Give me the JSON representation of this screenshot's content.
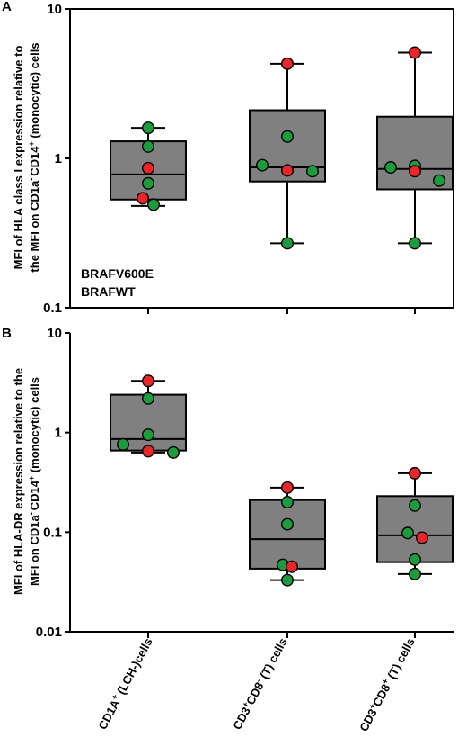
{
  "colors": {
    "braf_v600e": "#e8262b",
    "braf_wt": "#1e9b3c",
    "box_fill": "#808080",
    "legend_v600e_text": "#a01c1c",
    "legend_wt_text": "#1e7a2e"
  },
  "categories": [
    {
      "main": "CD1A",
      "sup": "+",
      "rest": " (LCH-)cells"
    },
    {
      "main": "CD3",
      "sup": "+",
      "mid": "CD8",
      "sup2": "-",
      "rest": " (T) cells"
    },
    {
      "main": "CD3",
      "sup": "+",
      "mid": "CD8",
      "sup2": "+",
      "rest": " (T) cells"
    }
  ],
  "legend": {
    "v600e": "BRAFV600E",
    "wt": "BRAFWT"
  },
  "chart_data": [
    {
      "type": "box",
      "panel": "A",
      "ylabel_line1": "MFI of HLA class I expression relative to",
      "ylabel_line2": "the MFI on CD1a",
      "ylabel_line2_sup1": "-",
      "ylabel_line2_mid": "CD14",
      "ylabel_line2_sup2": "+",
      "ylabel_line2_end": " (monocytic) cells",
      "yscale": "log",
      "ylim": [
        0.1,
        10
      ],
      "yticks": [
        "0.1",
        "1",
        "10"
      ],
      "boxes": [
        {
          "min": 0.48,
          "q1": 0.53,
          "median": 0.78,
          "q3": 1.3,
          "max": 1.6
        },
        {
          "min": 0.27,
          "q1": 0.7,
          "median": 0.87,
          "q3": 2.1,
          "max": 4.3
        },
        {
          "min": 0.27,
          "q1": 0.62,
          "median": 0.85,
          "q3": 1.9,
          "max": 5.1
        }
      ],
      "points": [
        {
          "cat": 0,
          "y": 1.6,
          "dx": 0,
          "group": "wt"
        },
        {
          "cat": 0,
          "y": 1.2,
          "dx": 0,
          "group": "wt"
        },
        {
          "cat": 0,
          "y": 0.86,
          "dx": 0,
          "group": "v600e"
        },
        {
          "cat": 0,
          "y": 0.68,
          "dx": 0,
          "group": "wt"
        },
        {
          "cat": 0,
          "y": 0.54,
          "dx": -6,
          "group": "v600e"
        },
        {
          "cat": 0,
          "y": 0.49,
          "dx": 6,
          "group": "wt"
        },
        {
          "cat": 1,
          "y": 4.3,
          "dx": 0,
          "group": "v600e"
        },
        {
          "cat": 1,
          "y": 1.4,
          "dx": 0,
          "group": "wt"
        },
        {
          "cat": 1,
          "y": 0.9,
          "dx": -28,
          "group": "wt"
        },
        {
          "cat": 1,
          "y": 0.83,
          "dx": 0,
          "group": "v600e"
        },
        {
          "cat": 1,
          "y": 0.82,
          "dx": 28,
          "group": "wt"
        },
        {
          "cat": 1,
          "y": 0.27,
          "dx": 0,
          "group": "wt"
        },
        {
          "cat": 2,
          "y": 5.1,
          "dx": 0,
          "group": "v600e"
        },
        {
          "cat": 2,
          "y": 0.89,
          "dx": 0,
          "group": "wt"
        },
        {
          "cat": 2,
          "y": 0.87,
          "dx": -27,
          "group": "wt"
        },
        {
          "cat": 2,
          "y": 0.82,
          "dx": 0,
          "group": "v600e"
        },
        {
          "cat": 2,
          "y": 0.71,
          "dx": 27,
          "group": "wt"
        },
        {
          "cat": 2,
          "y": 0.27,
          "dx": 0,
          "group": "wt"
        }
      ]
    },
    {
      "type": "box",
      "panel": "B",
      "ylabel_line1": "MFI of HLA-DR expression relative to the",
      "ylabel_line2": "MFI on CD1a",
      "ylabel_line2_sup1": "-",
      "ylabel_line2_mid": "CD14",
      "ylabel_line2_sup2": "+",
      "ylabel_line2_end": " (monocytic) cells",
      "yscale": "log",
      "ylim": [
        0.01,
        10
      ],
      "yticks": [
        "0.01",
        "0.1",
        "1",
        "10"
      ],
      "boxes": [
        {
          "min": 0.63,
          "q1": 0.66,
          "median": 0.86,
          "q3": 2.4,
          "max": 3.3
        },
        {
          "min": 0.033,
          "q1": 0.043,
          "median": 0.085,
          "q3": 0.21,
          "max": 0.28
        },
        {
          "min": 0.038,
          "q1": 0.05,
          "median": 0.093,
          "q3": 0.23,
          "max": 0.39
        }
      ],
      "points": [
        {
          "cat": 0,
          "y": 3.3,
          "dx": 0,
          "group": "v600e"
        },
        {
          "cat": 0,
          "y": 2.2,
          "dx": 0,
          "group": "wt"
        },
        {
          "cat": 0,
          "y": 0.95,
          "dx": 0,
          "group": "wt"
        },
        {
          "cat": 0,
          "y": 0.76,
          "dx": -28,
          "group": "wt"
        },
        {
          "cat": 0,
          "y": 0.65,
          "dx": 0,
          "group": "v600e"
        },
        {
          "cat": 0,
          "y": 0.63,
          "dx": 28,
          "group": "wt"
        },
        {
          "cat": 1,
          "y": 0.28,
          "dx": 0,
          "group": "v600e"
        },
        {
          "cat": 1,
          "y": 0.2,
          "dx": 0,
          "group": "wt"
        },
        {
          "cat": 1,
          "y": 0.12,
          "dx": 0,
          "group": "wt"
        },
        {
          "cat": 1,
          "y": 0.047,
          "dx": -5,
          "group": "wt"
        },
        {
          "cat": 1,
          "y": 0.045,
          "dx": 5,
          "group": "v600e"
        },
        {
          "cat": 1,
          "y": 0.033,
          "dx": 0,
          "group": "wt"
        },
        {
          "cat": 2,
          "y": 0.39,
          "dx": 0,
          "group": "v600e"
        },
        {
          "cat": 2,
          "y": 0.185,
          "dx": 0,
          "group": "wt"
        },
        {
          "cat": 2,
          "y": 0.098,
          "dx": -8,
          "group": "wt"
        },
        {
          "cat": 2,
          "y": 0.088,
          "dx": 8,
          "group": "v600e"
        },
        {
          "cat": 2,
          "y": 0.053,
          "dx": 0,
          "group": "wt"
        },
        {
          "cat": 2,
          "y": 0.038,
          "dx": 0,
          "group": "wt"
        }
      ]
    }
  ]
}
